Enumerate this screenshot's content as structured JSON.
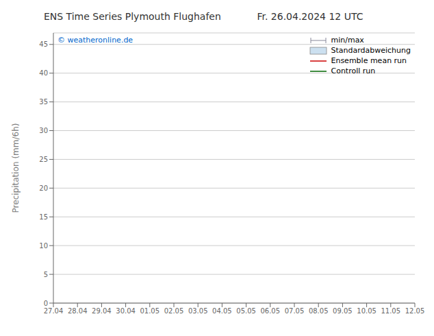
{
  "chart_data": {
    "type": "line",
    "title": "ENS Time Series Plymouth Flughafen",
    "subtitle": "Fr. 26.04.2024 12 UTC",
    "y_label": "Precipitation (mm/6h)",
    "categories": [
      "27.04",
      "28.04",
      "29.04",
      "30.04",
      "01.05",
      "02.05",
      "03.05",
      "04.05",
      "05.05",
      "06.05",
      "07.05",
      "08.05",
      "09.05",
      "10.05",
      "11.05",
      "12.05"
    ],
    "series": [
      {
        "name": "min/max",
        "type": "range",
        "color": "#888899",
        "values": [
          null,
          null,
          null,
          null,
          null,
          null,
          null,
          null,
          null,
          null,
          null,
          null,
          null,
          null,
          null,
          null
        ]
      },
      {
        "name": "Standardabweichung",
        "type": "area",
        "color": "#cce0f0",
        "values": [
          null,
          null,
          null,
          null,
          null,
          null,
          null,
          null,
          null,
          null,
          null,
          null,
          null,
          null,
          null,
          null
        ]
      },
      {
        "name": "Ensemble mean run",
        "type": "line",
        "color": "#cc0000",
        "values": [
          null,
          null,
          null,
          null,
          null,
          null,
          null,
          null,
          null,
          null,
          null,
          null,
          null,
          null,
          null,
          null
        ]
      },
      {
        "name": "Controll run",
        "type": "line",
        "color": "#006600",
        "values": [
          null,
          null,
          null,
          null,
          null,
          null,
          null,
          null,
          null,
          null,
          null,
          null,
          null,
          null,
          null,
          null
        ]
      }
    ],
    "shaded_categories": [
      "27.04",
      "28.04",
      "04.05",
      "05.05",
      "11.05"
    ],
    "shaded_color": "#d8eaf7",
    "annotations": [
      {
        "text": "© weatheronline.de",
        "color": "#0066cc"
      }
    ],
    "ylim": [
      0,
      47
    ],
    "yticks": [
      0,
      5,
      10,
      15,
      20,
      25,
      30,
      35,
      40,
      45
    ],
    "grid": true,
    "legend": "upper right"
  }
}
